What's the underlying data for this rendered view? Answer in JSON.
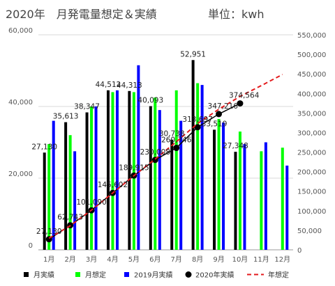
{
  "chart_data": {
    "type": "bar",
    "title": "2020年　月発電量想定＆実績",
    "unit_label": "単位：kwh",
    "categories": [
      "1月",
      "2月",
      "3月",
      "4月",
      "5月",
      "6月",
      "7月",
      "8月",
      "9月",
      "10月",
      "11月",
      "12月"
    ],
    "y_left": {
      "min": 0,
      "max": 60000,
      "ticks": [
        "0",
        "20,000",
        "40,000",
        "60,000"
      ]
    },
    "y_right": {
      "min": 0,
      "max": 550000,
      "ticks": [
        "0",
        "50,000",
        "100,000",
        "150,000",
        "200,000",
        "250,000",
        "300,000",
        "350,000",
        "400,000",
        "450,000",
        "500,000",
        "550,000"
      ]
    },
    "series": [
      {
        "name": "月実績",
        "color": "#000000",
        "axis": "left",
        "values": [
          27130,
          35613,
          38347,
          44512,
          44313,
          40093,
          30738,
          52951,
          33519,
          27348,
          null,
          null
        ],
        "labels": [
          "27,130",
          "35,613",
          "38,347",
          "44,512",
          "44,313",
          "40,093",
          "30,738",
          "52,951",
          "33,519",
          "27,348",
          null,
          null
        ]
      },
      {
        "name": "月想定",
        "color": "#00ff00",
        "axis": "left",
        "values": [
          29500,
          32000,
          40000,
          44000,
          44000,
          42500,
          44500,
          46500,
          36500,
          33000,
          27500,
          28500
        ]
      },
      {
        "name": "2019月実績",
        "color": "#0000ff",
        "axis": "left",
        "values": [
          36000,
          27500,
          40000,
          44500,
          51500,
          39000,
          36000,
          46000,
          35500,
          29500,
          30000,
          23500
        ]
      },
      {
        "name": "2020年実績",
        "color": "#000000",
        "axis": "right",
        "values": [
          27130,
          62743,
          101090,
          145602,
          189915,
          230008,
          260746,
          313697,
          347216,
          374564,
          null,
          null
        ],
        "labels": [
          "27,130",
          "62,743",
          "101,090",
          "145,602",
          "189,915",
          "230,008",
          "260,746",
          "313,697",
          "347,216",
          "374,564",
          null,
          null
        ]
      },
      {
        "name": "年想定",
        "color": "#e31a1c",
        "axis": "right",
        "style": "dashed",
        "values": [
          29500,
          61500,
          101500,
          145500,
          189500,
          232000,
          276500,
          323000,
          359500,
          392500,
          420000,
          448500
        ]
      }
    ],
    "legend_position": "bottom"
  }
}
